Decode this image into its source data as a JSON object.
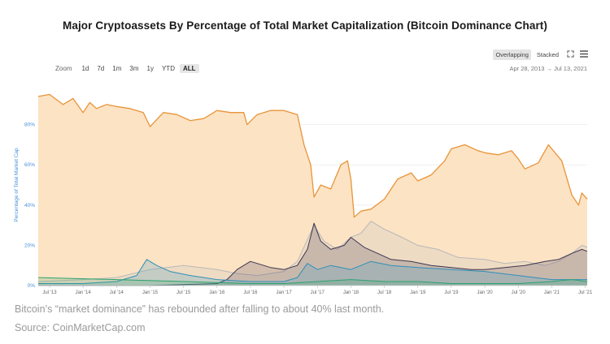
{
  "header": {
    "title": "Major Cryptoassets By Percentage of Total Market Capitalization (Bitcoin Dominance Chart)"
  },
  "toolbar": {
    "zoom_label": "Zoom",
    "zoom_options": [
      "1d",
      "7d",
      "1m",
      "3m",
      "1y",
      "YTD",
      "ALL"
    ],
    "active_zoom": "ALL",
    "modes": [
      "Overlapping",
      "Stacked"
    ],
    "active_mode": "Overlapping",
    "fullscreen_icon": "expand-icon",
    "menu_icon": "hamburger-menu-icon",
    "date_from": "Apr 28, 2013",
    "date_arrow": "→",
    "date_to": "Jul 13, 2021"
  },
  "chart_data": {
    "type": "area",
    "ylabel": "Percentage of Total Market Cap",
    "ylim": [
      0,
      100
    ],
    "yticks": [
      "0%",
      "20%",
      "40%",
      "60%",
      "80%"
    ],
    "ytick_values": [
      0,
      20,
      40,
      60,
      80
    ],
    "grid": true,
    "xlim": [
      2013.33,
      2021.53
    ],
    "xticks": [
      "Jul '13",
      "Jan '14",
      "Jul '14",
      "Jan '15",
      "Jul '15",
      "Jan '16",
      "Jul '16",
      "Jan '17",
      "Jul '17",
      "Jan '18",
      "Jul '18",
      "Jan '19",
      "Jul '19",
      "Jan '20",
      "Jul '20",
      "Jan '21",
      "Jul '21"
    ],
    "xtick_values": [
      2013.5,
      2014.0,
      2014.5,
      2015.0,
      2015.5,
      2016.0,
      2016.5,
      2017.0,
      2017.5,
      2018.0,
      2018.5,
      2019.0,
      2019.5,
      2020.0,
      2020.5,
      2021.0,
      2021.5
    ],
    "series": [
      {
        "color": "#e8943a",
        "fill": "#fce3c4",
        "x": [
          2013.33,
          2013.5,
          2013.7,
          2013.85,
          2014.0,
          2014.1,
          2014.2,
          2014.35,
          2014.5,
          2014.7,
          2014.9,
          2015.0,
          2015.2,
          2015.4,
          2015.6,
          2015.8,
          2016.0,
          2016.2,
          2016.4,
          2016.45,
          2016.6,
          2016.8,
          2017.0,
          2017.1,
          2017.2,
          2017.3,
          2017.4,
          2017.45,
          2017.55,
          2017.7,
          2017.85,
          2017.95,
          2018.0,
          2018.05,
          2018.15,
          2018.3,
          2018.5,
          2018.7,
          2018.9,
          2019.0,
          2019.2,
          2019.4,
          2019.5,
          2019.7,
          2019.9,
          2020.0,
          2020.2,
          2020.4,
          2020.5,
          2020.6,
          2020.8,
          2020.95,
          2021.0,
          2021.15,
          2021.3,
          2021.4,
          2021.45,
          2021.53
        ],
        "values": [
          94,
          95,
          90,
          93,
          86,
          91,
          88,
          90,
          89,
          88,
          86,
          79,
          86,
          85,
          82,
          83,
          87,
          86,
          86,
          80,
          85,
          87,
          87,
          86,
          85,
          70,
          60,
          44,
          50,
          48,
          60,
          62,
          53,
          34,
          37,
          38,
          43,
          53,
          56,
          52,
          55,
          62,
          68,
          70,
          67,
          66,
          65,
          67,
          63,
          58,
          61,
          70,
          68,
          62,
          45,
          40,
          46,
          43
        ]
      },
      {
        "color": "#b8b8b8",
        "fill": "rgba(190,190,190,0.22)",
        "x": [
          2013.33,
          2014.0,
          2014.5,
          2015.0,
          2015.5,
          2016.0,
          2016.3,
          2016.6,
          2017.0,
          2017.2,
          2017.45,
          2017.6,
          2017.8,
          2018.0,
          2018.15,
          2018.3,
          2018.5,
          2018.7,
          2019.0,
          2019.3,
          2019.6,
          2020.0,
          2020.3,
          2020.6,
          2020.9,
          2021.1,
          2021.3,
          2021.45,
          2021.53
        ],
        "values": [
          2,
          3,
          4,
          8,
          10,
          8,
          6,
          5,
          7,
          12,
          30,
          22,
          18,
          24,
          26,
          32,
          28,
          25,
          20,
          18,
          14,
          13,
          11,
          12,
          10,
          12,
          16,
          20,
          19
        ]
      },
      {
        "color": "#3d3550",
        "fill": "rgba(70,60,90,0.22)",
        "x": [
          2013.33,
          2015.0,
          2016.0,
          2016.15,
          2016.3,
          2016.5,
          2016.8,
          2017.0,
          2017.2,
          2017.35,
          2017.45,
          2017.55,
          2017.7,
          2017.9,
          2018.0,
          2018.2,
          2018.4,
          2018.6,
          2018.9,
          2019.2,
          2019.5,
          2019.8,
          2020.0,
          2020.3,
          2020.6,
          2020.9,
          2021.1,
          2021.3,
          2021.45,
          2021.53
        ],
        "values": [
          0,
          0,
          1,
          3,
          8,
          12,
          9,
          8,
          10,
          18,
          31,
          22,
          18,
          20,
          24,
          19,
          16,
          13,
          12,
          10,
          9,
          8,
          8,
          9,
          10,
          12,
          13,
          16,
          18,
          17
        ]
      },
      {
        "color": "#2f8fb8",
        "fill": "rgba(70,160,200,0.25)",
        "x": [
          2013.33,
          2014.0,
          2014.5,
          2014.8,
          2014.95,
          2015.1,
          2015.3,
          2015.6,
          2016.0,
          2016.5,
          2017.0,
          2017.2,
          2017.35,
          2017.5,
          2017.7,
          2018.0,
          2018.3,
          2018.6,
          2019.0,
          2019.5,
          2020.0,
          2020.5,
          2021.0,
          2021.3,
          2021.53
        ],
        "values": [
          1,
          1,
          2,
          5,
          13,
          10,
          7,
          5,
          3,
          2,
          2,
          4,
          11,
          8,
          10,
          8,
          12,
          10,
          9,
          8,
          7,
          5,
          3,
          3,
          3
        ]
      },
      {
        "color": "#2aa36b",
        "fill": "rgba(60,170,110,0.2)",
        "x": [
          2013.33,
          2014.5,
          2015.5,
          2016.5,
          2017.0,
          2017.5,
          2018.0,
          2018.5,
          2019.0,
          2019.5,
          2020.0,
          2020.5,
          2021.0,
          2021.3,
          2021.53
        ],
        "values": [
          4,
          3,
          2,
          1,
          1,
          2,
          3,
          2,
          2,
          1,
          1,
          1,
          2,
          3,
          2
        ]
      }
    ]
  },
  "caption": "Bitcoin’s “market dominance” has rebounded after falling to about 40% last month.",
  "source": "Source: CoinMarketCap.com"
}
